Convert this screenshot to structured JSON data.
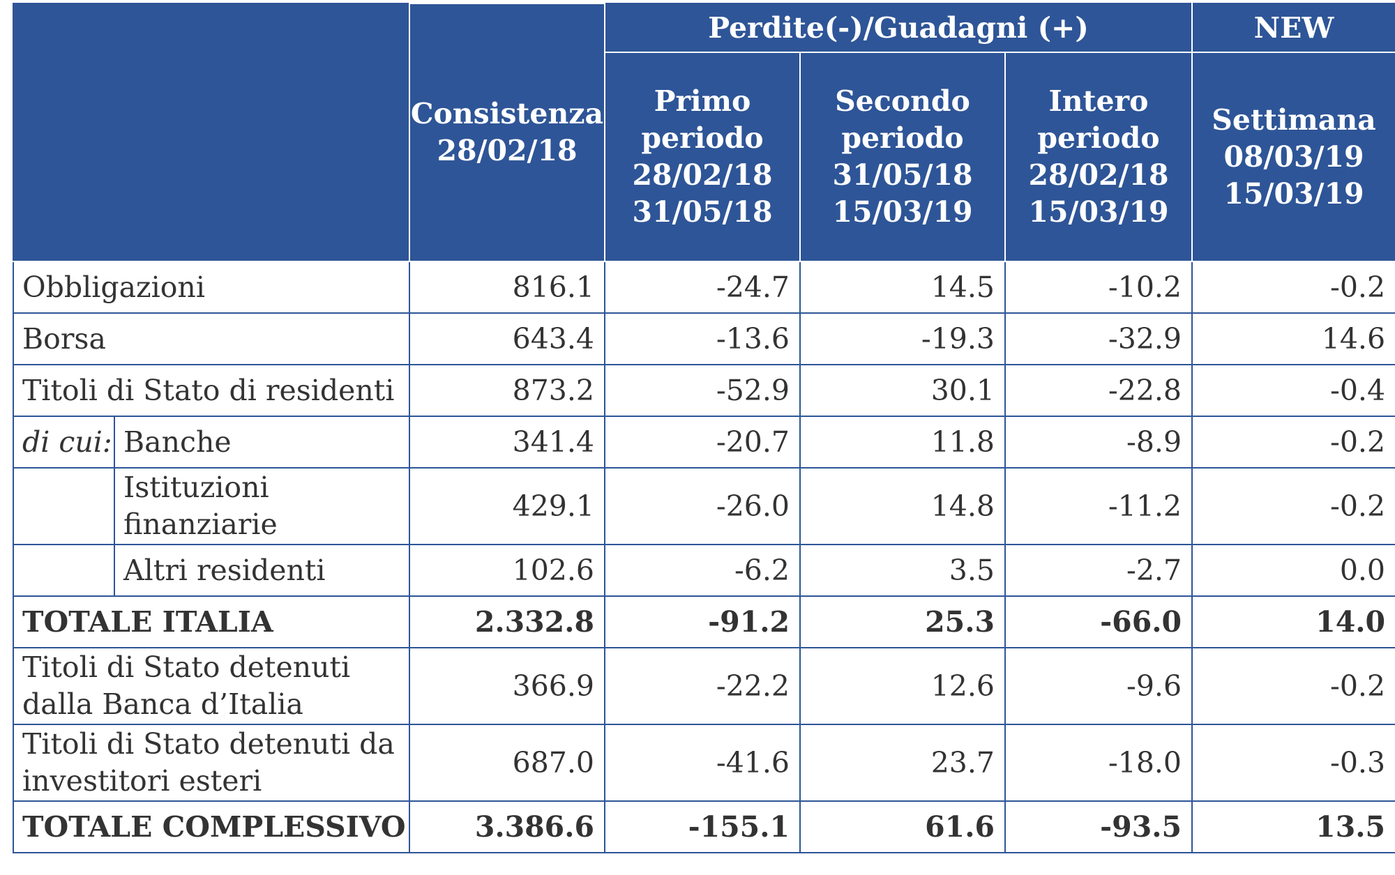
{
  "header": {
    "group_label": "Perdite(-)/Guadagni (+)",
    "new_label": "NEW",
    "columns": [
      [
        "Consistenza",
        "28/02/18"
      ],
      [
        "Primo",
        "periodo",
        "28/02/18",
        "31/05/18"
      ],
      [
        "Secondo",
        "periodo",
        "31/05/18",
        "15/03/19"
      ],
      [
        "Intero",
        "periodo",
        "28/02/18",
        "15/03/19"
      ],
      [
        "Settimana",
        "08/03/19",
        "15/03/19"
      ]
    ]
  },
  "rows": [
    {
      "label": [
        "Obbligazioni"
      ],
      "values": [
        "816.1",
        "-24.7",
        "14.5",
        "-10.2",
        "-0.2"
      ]
    },
    {
      "label": [
        "Borsa"
      ],
      "values": [
        "643.4",
        "-13.6",
        "-19.3",
        "-32.9",
        "14.6"
      ]
    },
    {
      "label": [
        "Titoli di Stato di residenti"
      ],
      "values": [
        "873.2",
        "-52.9",
        "30.1",
        "-22.8",
        "-0.4"
      ]
    },
    {
      "prefix": "di cui:",
      "label": [
        "Banche"
      ],
      "values": [
        "341.4",
        "-20.7",
        "11.8",
        "-8.9",
        "-0.2"
      ]
    },
    {
      "label": [
        "Istituzioni",
        "finanziarie"
      ],
      "values": [
        "429.1",
        "-26.0",
        "14.8",
        "-11.2",
        "-0.2"
      ]
    },
    {
      "label": [
        "Altri residenti"
      ],
      "values": [
        "102.6",
        "-6.2",
        "3.5",
        "-2.7",
        "0.0"
      ]
    },
    {
      "label": [
        "TOTALE ITALIA"
      ],
      "values": [
        "2.332.8",
        "-91.2",
        "25.3",
        "-66.0",
        "14.0"
      ]
    },
    {
      "label": [
        "Titoli di Stato detenuti",
        "dalla Banca d’Italia"
      ],
      "values": [
        "366.9",
        "-22.2",
        "12.6",
        "-9.6",
        "-0.2"
      ]
    },
    {
      "label": [
        "Titoli di Stato detenuti da",
        "investitori esteri"
      ],
      "values": [
        "687.0",
        "-41.6",
        "23.7",
        "-18.0",
        "-0.3"
      ]
    },
    {
      "label": [
        "TOTALE COMPLESSIVO"
      ],
      "values": [
        "3.386.6",
        "-155.1",
        "61.6",
        "-93.5",
        "13.5"
      ]
    }
  ],
  "colors": {
    "header_bg": "#2e5597",
    "header_text": "#ffffff",
    "border": "#2e5597"
  }
}
